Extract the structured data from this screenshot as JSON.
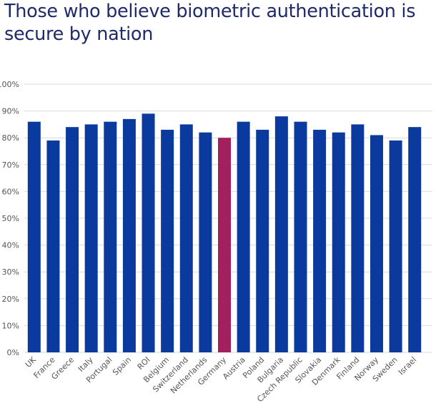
{
  "chart_data": {
    "type": "bar",
    "title": "Those who believe biometric authentication is secure by nation",
    "xlabel": "",
    "ylabel": "",
    "ylim": [
      0,
      100
    ],
    "ytick_step": 10,
    "ytick_suffix": "%",
    "grid": true,
    "legend": "none",
    "categories": [
      "UK",
      "France",
      "Greece",
      "Italy",
      "Portugal",
      "Spain",
      "ROI",
      "Belgium",
      "Switzerland",
      "Netherlands",
      "Germany",
      "Austria",
      "Poland",
      "Bulgaria",
      "Czech Republic",
      "Slovakia",
      "Denmark",
      "Finland",
      "Norway",
      "Sweden",
      "Israel"
    ],
    "values": [
      86,
      79,
      84,
      85,
      86,
      87,
      89,
      83,
      85,
      82,
      80,
      86,
      83,
      88,
      86,
      83,
      82,
      85,
      81,
      79,
      84
    ],
    "highlight_category": "Germany",
    "colors": {
      "bar": "#0a3a9e",
      "highlight": "#a3205f",
      "grid": "#d9d9d9",
      "title": "#1f2a6b",
      "text": "#555555"
    }
  }
}
